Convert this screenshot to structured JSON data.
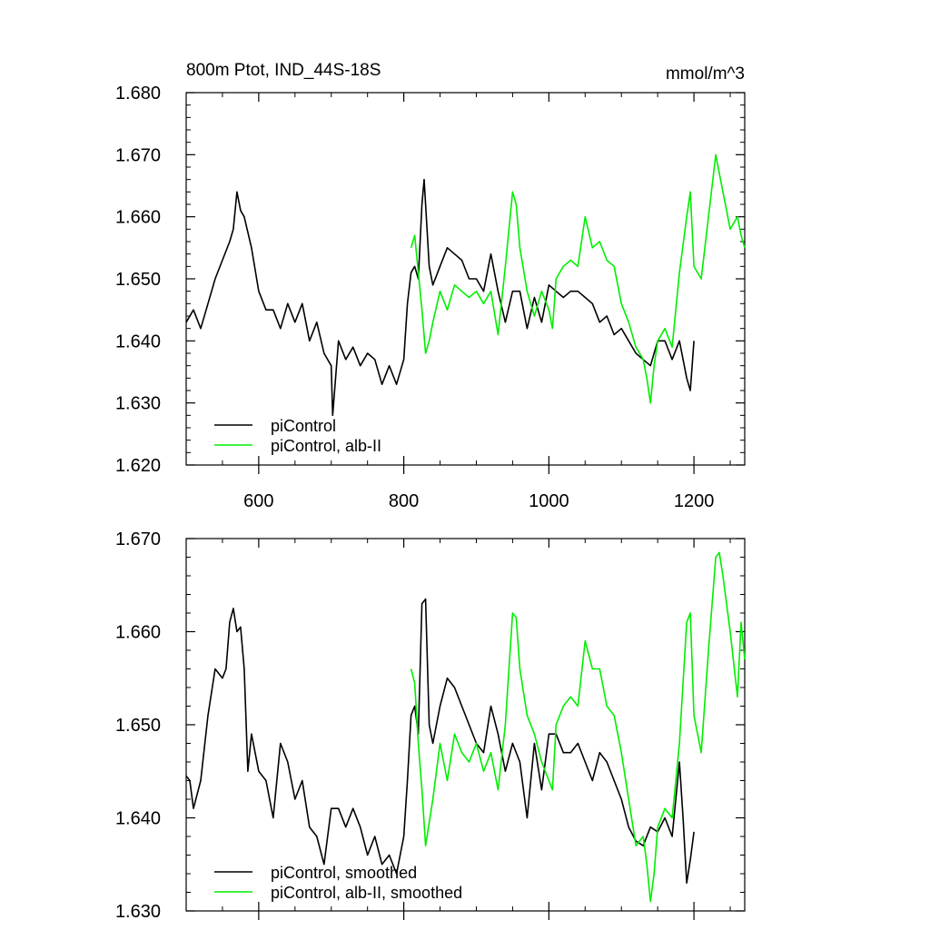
{
  "chart_data": [
    {
      "type": "line",
      "title": "800m Ptot, IND_44S-18S",
      "units": "mmol/m^3",
      "xlim": [
        500,
        1270
      ],
      "ylim": [
        1.62,
        1.68
      ],
      "yticks": [
        "1.620",
        "1.630",
        "1.640",
        "1.650",
        "1.660",
        "1.670",
        "1.680"
      ],
      "xticks": [
        "600",
        "800",
        "1000",
        "1200"
      ],
      "grid": false,
      "legend_position": "bottom-left",
      "series": [
        {
          "name": "piControl",
          "color": "#000000",
          "x": [
            500,
            510,
            520,
            530,
            540,
            550,
            560,
            565,
            570,
            575,
            580,
            590,
            600,
            610,
            620,
            630,
            640,
            650,
            660,
            670,
            680,
            690,
            700,
            702,
            710,
            720,
            730,
            740,
            750,
            760,
            770,
            780,
            790,
            800,
            805,
            810,
            815,
            820,
            825,
            828,
            835,
            840,
            850,
            860,
            870,
            880,
            890,
            900,
            910,
            920,
            930,
            940,
            950,
            960,
            970,
            980,
            990,
            1000,
            1010,
            1020,
            1030,
            1040,
            1050,
            1060,
            1070,
            1080,
            1090,
            1100,
            1110,
            1120,
            1130,
            1140,
            1150,
            1160,
            1170,
            1180,
            1190,
            1195,
            1200
          ],
          "values": [
            1.643,
            1.645,
            1.642,
            1.646,
            1.65,
            1.653,
            1.656,
            1.658,
            1.664,
            1.661,
            1.66,
            1.655,
            1.648,
            1.645,
            1.645,
            1.642,
            1.646,
            1.643,
            1.646,
            1.64,
            1.643,
            1.638,
            1.636,
            1.628,
            1.64,
            1.637,
            1.639,
            1.636,
            1.638,
            1.637,
            1.633,
            1.636,
            1.633,
            1.637,
            1.646,
            1.651,
            1.652,
            1.65,
            1.662,
            1.666,
            1.652,
            1.649,
            1.652,
            1.655,
            1.654,
            1.653,
            1.65,
            1.65,
            1.648,
            1.654,
            1.648,
            1.643,
            1.648,
            1.648,
            1.642,
            1.647,
            1.643,
            1.649,
            1.648,
            1.647,
            1.648,
            1.648,
            1.647,
            1.646,
            1.643,
            1.644,
            1.641,
            1.642,
            1.64,
            1.638,
            1.637,
            1.636,
            1.64,
            1.64,
            1.637,
            1.64,
            1.634,
            1.632,
            1.64
          ]
        },
        {
          "name": "piControl, alb-II",
          "color": "#00ee00",
          "x": [
            810,
            815,
            820,
            825,
            830,
            835,
            840,
            850,
            860,
            870,
            880,
            890,
            900,
            910,
            920,
            930,
            940,
            945,
            950,
            955,
            960,
            970,
            980,
            990,
            1000,
            1005,
            1010,
            1020,
            1030,
            1040,
            1050,
            1060,
            1070,
            1080,
            1090,
            1100,
            1110,
            1120,
            1130,
            1135,
            1140,
            1145,
            1150,
            1160,
            1170,
            1180,
            1190,
            1195,
            1200,
            1210,
            1220,
            1230,
            1235,
            1240,
            1250,
            1260,
            1265,
            1270
          ],
          "values": [
            1.655,
            1.657,
            1.651,
            1.645,
            1.638,
            1.64,
            1.643,
            1.648,
            1.645,
            1.649,
            1.648,
            1.647,
            1.648,
            1.646,
            1.648,
            1.641,
            1.652,
            1.658,
            1.664,
            1.662,
            1.655,
            1.648,
            1.644,
            1.648,
            1.645,
            1.642,
            1.65,
            1.652,
            1.653,
            1.652,
            1.66,
            1.655,
            1.656,
            1.653,
            1.652,
            1.646,
            1.643,
            1.639,
            1.637,
            1.634,
            1.63,
            1.636,
            1.64,
            1.642,
            1.639,
            1.651,
            1.66,
            1.664,
            1.652,
            1.65,
            1.66,
            1.67,
            1.667,
            1.664,
            1.658,
            1.66,
            1.657,
            1.655
          ]
        }
      ]
    },
    {
      "type": "line",
      "title": "",
      "xlim": [
        500,
        1270
      ],
      "ylim": [
        1.63,
        1.67
      ],
      "yticks": [
        "1.630",
        "1.640",
        "1.650",
        "1.660",
        "1.670"
      ],
      "grid": false,
      "legend_position": "bottom-left",
      "series": [
        {
          "name": "piControl, smoothed",
          "color": "#000000",
          "x": [
            500,
            505,
            510,
            520,
            530,
            540,
            550,
            555,
            560,
            565,
            570,
            575,
            580,
            585,
            590,
            600,
            610,
            620,
            630,
            640,
            650,
            660,
            670,
            680,
            690,
            700,
            710,
            720,
            730,
            740,
            750,
            760,
            770,
            780,
            790,
            800,
            805,
            810,
            815,
            820,
            825,
            830,
            835,
            840,
            850,
            860,
            870,
            880,
            890,
            900,
            910,
            920,
            930,
            940,
            950,
            960,
            970,
            980,
            990,
            1000,
            1010,
            1020,
            1030,
            1040,
            1050,
            1060,
            1070,
            1080,
            1090,
            1100,
            1110,
            1120,
            1130,
            1140,
            1150,
            1160,
            1170,
            1180,
            1185,
            1190,
            1195,
            1200
          ],
          "values": [
            1.6445,
            1.644,
            1.641,
            1.644,
            1.651,
            1.656,
            1.655,
            1.656,
            1.661,
            1.6625,
            1.66,
            1.6605,
            1.656,
            1.645,
            1.649,
            1.645,
            1.644,
            1.64,
            1.648,
            1.646,
            1.642,
            1.644,
            1.639,
            1.638,
            1.635,
            1.641,
            1.641,
            1.639,
            1.641,
            1.639,
            1.636,
            1.638,
            1.635,
            1.636,
            1.634,
            1.638,
            1.644,
            1.651,
            1.652,
            1.649,
            1.663,
            1.6635,
            1.65,
            1.648,
            1.652,
            1.655,
            1.654,
            1.652,
            1.65,
            1.648,
            1.647,
            1.652,
            1.649,
            1.645,
            1.648,
            1.646,
            1.64,
            1.648,
            1.643,
            1.649,
            1.649,
            1.647,
            1.647,
            1.648,
            1.646,
            1.644,
            1.647,
            1.646,
            1.644,
            1.642,
            1.639,
            1.6375,
            1.637,
            1.639,
            1.6385,
            1.64,
            1.638,
            1.646,
            1.64,
            1.633,
            1.6355,
            1.6385
          ]
        },
        {
          "name": "piControl, alb-II, smoothed",
          "color": "#00ee00",
          "x": [
            810,
            815,
            820,
            825,
            830,
            840,
            850,
            860,
            870,
            880,
            890,
            900,
            910,
            920,
            930,
            940,
            945,
            950,
            955,
            960,
            970,
            980,
            990,
            1000,
            1005,
            1010,
            1020,
            1030,
            1040,
            1050,
            1060,
            1070,
            1080,
            1090,
            1100,
            1110,
            1120,
            1130,
            1135,
            1140,
            1145,
            1150,
            1160,
            1170,
            1180,
            1190,
            1195,
            1200,
            1210,
            1220,
            1230,
            1235,
            1240,
            1250,
            1260,
            1265,
            1270
          ],
          "values": [
            1.656,
            1.6545,
            1.648,
            1.643,
            1.637,
            1.642,
            1.648,
            1.644,
            1.649,
            1.647,
            1.646,
            1.648,
            1.645,
            1.647,
            1.643,
            1.65,
            1.656,
            1.662,
            1.6615,
            1.656,
            1.651,
            1.649,
            1.646,
            1.644,
            1.643,
            1.65,
            1.652,
            1.653,
            1.652,
            1.659,
            1.656,
            1.656,
            1.652,
            1.651,
            1.647,
            1.642,
            1.637,
            1.638,
            1.635,
            1.631,
            1.634,
            1.639,
            1.641,
            1.64,
            1.648,
            1.661,
            1.662,
            1.651,
            1.647,
            1.658,
            1.668,
            1.6685,
            1.666,
            1.66,
            1.653,
            1.661,
            1.657
          ]
        }
      ]
    }
  ]
}
